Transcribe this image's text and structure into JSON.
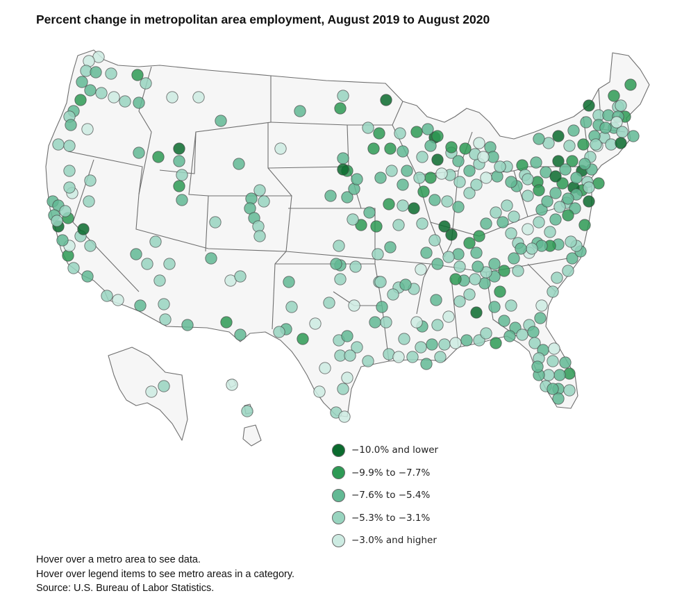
{
  "title": "Percent change in metropolitan area employment, August 2019 to August 2020",
  "legend": [
    {
      "label": "−10.0% and lower",
      "color": "#0b6b2e"
    },
    {
      "label": "−9.9% to −7.7%",
      "color": "#2e9a55"
    },
    {
      "label": "−7.6% to −5.4%",
      "color": "#62b994"
    },
    {
      "label": "−5.3% to −3.1%",
      "color": "#98d4bf"
    },
    {
      "label": "−3.0% and higher",
      "color": "#cdebe2"
    }
  ],
  "notes": {
    "line1": "Hover over a metro area to see data.",
    "line2": "Hover over legend items to see metro areas in a category.",
    "line3": "Source: U.S. Bureau of Labor Statistics."
  },
  "metro_categories": [
    4,
    4,
    3,
    2,
    3,
    1,
    3,
    2,
    2,
    3,
    4,
    3,
    2,
    1,
    2,
    3,
    2,
    4,
    3,
    3,
    4,
    4,
    2,
    2,
    3,
    1,
    0,
    2,
    1,
    0,
    2,
    3,
    1,
    2,
    4,
    2,
    2,
    1,
    3,
    1,
    3,
    1,
    0,
    2,
    1,
    1,
    2,
    3,
    0,
    3,
    2,
    4,
    2,
    2,
    3,
    2,
    3,
    3,
    4,
    1,
    3,
    2,
    3,
    2,
    2,
    1,
    2,
    3,
    2,
    3,
    3,
    4,
    2,
    3,
    1,
    2,
    3,
    2,
    3,
    1,
    2,
    0,
    1,
    0,
    2,
    3,
    1,
    0,
    1,
    2,
    3,
    2,
    0,
    1,
    1,
    2,
    2,
    3,
    3,
    4,
    3,
    3,
    3,
    2,
    1,
    1,
    2,
    0,
    0,
    3,
    2,
    3,
    0,
    3,
    1,
    1,
    2,
    1,
    3,
    2,
    2,
    2,
    2,
    0,
    2,
    1,
    1,
    3,
    1,
    4,
    3,
    2,
    3,
    1,
    0,
    2,
    2,
    3,
    4,
    3,
    2,
    3,
    2,
    1,
    3,
    0,
    2,
    2,
    0,
    3,
    2,
    3,
    1,
    2,
    3,
    0,
    1,
    3,
    2,
    1,
    2,
    3,
    4,
    2,
    2,
    3,
    2,
    1,
    3,
    2,
    2,
    3,
    2,
    2,
    4,
    3,
    2,
    3,
    1,
    2,
    2,
    3,
    2,
    1,
    3,
    3,
    0,
    2,
    1,
    3,
    2,
    2,
    3,
    2,
    4,
    3,
    3,
    3,
    2,
    2,
    3,
    3,
    2,
    1,
    2,
    3,
    2,
    3,
    2,
    2,
    3,
    2,
    2,
    3,
    4,
    3,
    2,
    2,
    3,
    2,
    3,
    4,
    2,
    3,
    3,
    1,
    2,
    3,
    2,
    3,
    2,
    4,
    3,
    3,
    2,
    1,
    2,
    3,
    2,
    2,
    3,
    2,
    3,
    2,
    2,
    3,
    4,
    2,
    3,
    3,
    2,
    3,
    2,
    3,
    2,
    3,
    4,
    3,
    4,
    3,
    2,
    3,
    4,
    3,
    2,
    3,
    2,
    3,
    3,
    3,
    2,
    3,
    3,
    2,
    3,
    3,
    4,
    3,
    2,
    3,
    3,
    4,
    3,
    3,
    4,
    3,
    4,
    3,
    4,
    2,
    3,
    1,
    2,
    1,
    3,
    2,
    2,
    3,
    2,
    3,
    3,
    2,
    3,
    3,
    4,
    3,
    4,
    3,
    2,
    3,
    1,
    4,
    3,
    3,
    2,
    0,
    1,
    0,
    2,
    2,
    3,
    2,
    3,
    4,
    3,
    3,
    3,
    3,
    4,
    3,
    4,
    3,
    3,
    2,
    3,
    3,
    2,
    2,
    3,
    3,
    3,
    4,
    3,
    4,
    3,
    4,
    4,
    3,
    3,
    3,
    3,
    4,
    4,
    3,
    3,
    3,
    3,
    3,
    4,
    4,
    3,
    3,
    3,
    4,
    3,
    4,
    3,
    2,
    3,
    4,
    3,
    3,
    4
  ]
}
